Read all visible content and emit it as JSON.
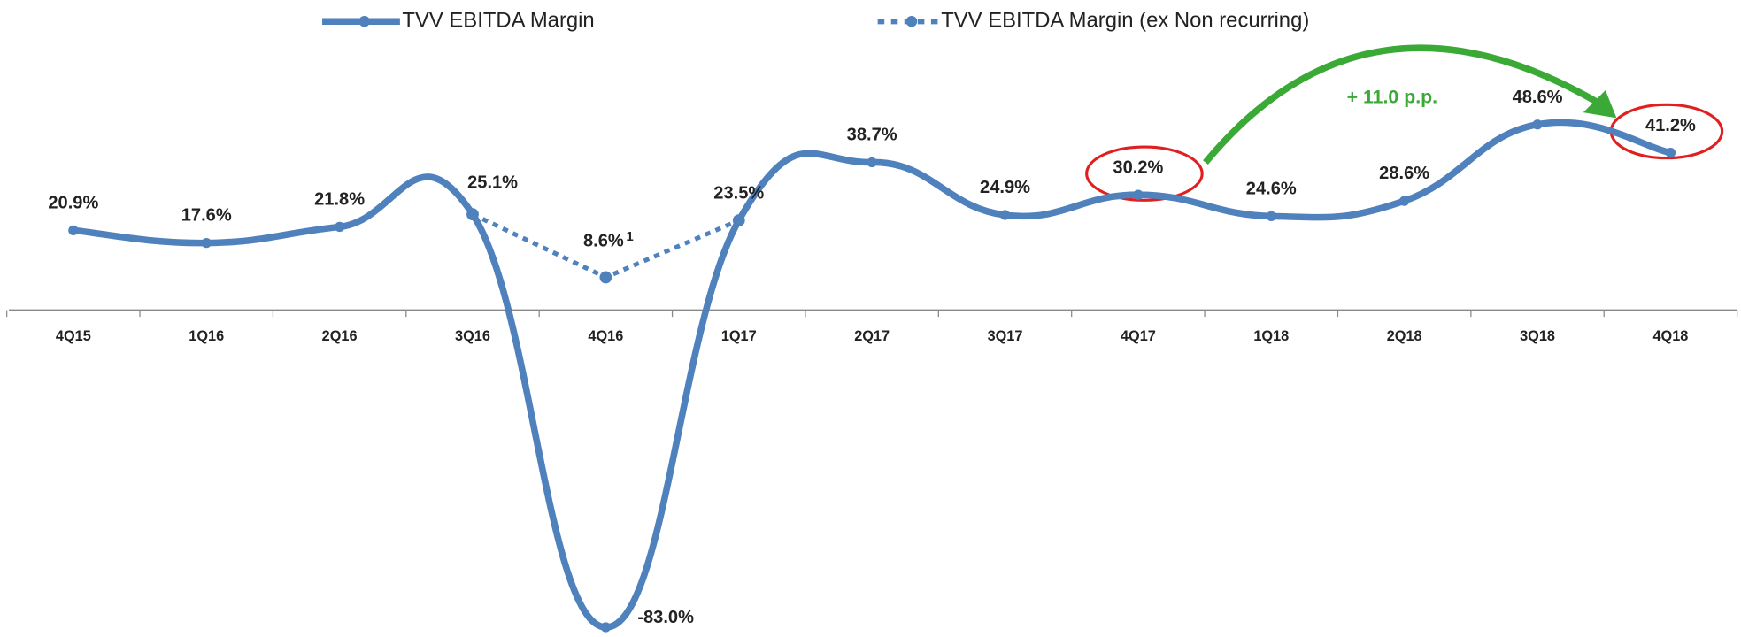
{
  "chart_data": {
    "type": "line",
    "categories": [
      "4Q15",
      "1Q16",
      "2Q16",
      "3Q16",
      "4Q16",
      "1Q17",
      "2Q17",
      "3Q17",
      "4Q17",
      "1Q18",
      "2Q18",
      "3Q18",
      "4Q18"
    ],
    "series": [
      {
        "name": "TVV EBITDA Margin",
        "color": "#4f81bd",
        "style": "solid",
        "values": [
          20.9,
          17.6,
          21.8,
          25.1,
          -83.0,
          23.5,
          38.7,
          24.9,
          30.2,
          24.6,
          28.6,
          48.6,
          41.2
        ],
        "value_labels": [
          "20.9%",
          "17.6%",
          "21.8%",
          "25.1%",
          "-83.0%",
          "23.5%",
          "38.7%",
          "24.9%",
          "30.2%",
          "24.6%",
          "28.6%",
          "48.6%",
          "41.2%"
        ]
      },
      {
        "name": "TVV EBITDA Margin (ex Non recurring)",
        "color": "#4f81bd",
        "style": "dotted",
        "values": [
          null,
          null,
          null,
          25.1,
          8.6,
          23.5,
          null,
          null,
          null,
          null,
          null,
          null,
          null
        ],
        "value_labels": [
          null,
          null,
          null,
          null,
          "8.6%",
          null,
          null,
          null,
          null,
          null,
          null,
          null,
          null
        ]
      }
    ],
    "annotations": [
      "+ 11.0 p.p.",
      "1"
    ]
  }
}
